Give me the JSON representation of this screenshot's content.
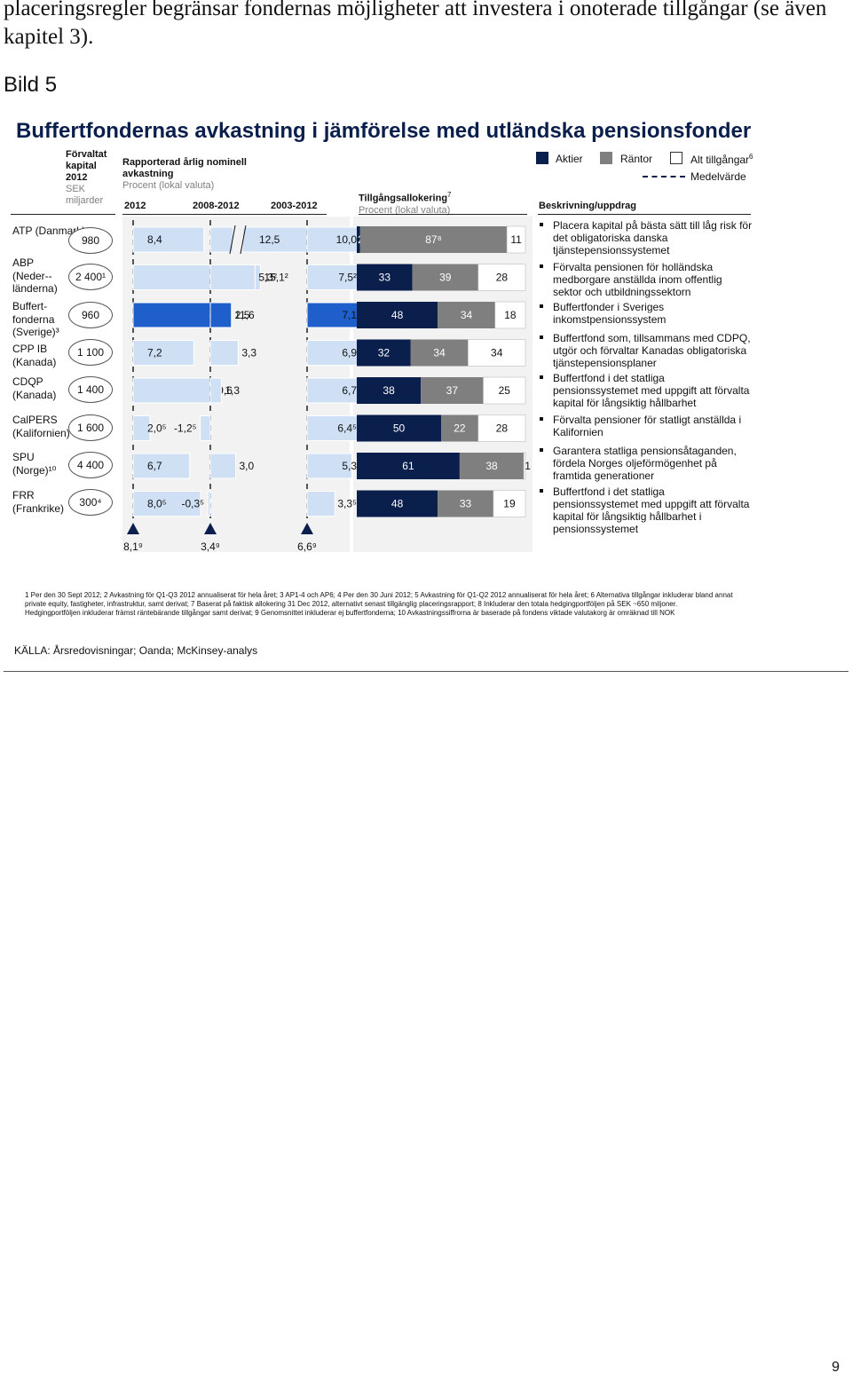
{
  "intro_text": "placeringsregler begränsar fondernas möjligheter att investera i onoterade tillgångar (se även kapitel 3).",
  "bild_label": "Bild 5",
  "title": "Buffertfondernas avkastning i jämförelse med utländska pensionsfonder",
  "col_headers": {
    "capital_title": "Förvaltat kapital 2012",
    "capital_unit": "SEK miljarder",
    "return_title": "Rapporterad årlig nominell avkastning",
    "return_unit": "Procent (lokal valuta)",
    "period_2012": "2012",
    "period_2008": "2008-2012",
    "period_2003": "2003-2012",
    "alloc_title": "Tillgångsallokering",
    "alloc_title_sup": "7",
    "alloc_unit": "Procent (lokal valuta)",
    "desc_title": "Beskrivning/uppdrag"
  },
  "legend": {
    "equities": "Aktier",
    "rates": "Räntor",
    "alternatives": "Alt tillgångar",
    "alternatives_sup": "6",
    "average": "Medelvärde"
  },
  "funds": [
    {
      "name": "ATP (Danmark)",
      "capital": "980",
      "description": "Placera kapital på bästa sätt till låg risk för det obligatoriska danska tjänstepensionssystemet"
    },
    {
      "name": "ABP (Neder-- länderna)",
      "capital": "2 400¹",
      "description": "Förvalta pensionen för holländska medborgare anställda inom offentlig sektor och utbildningssektorn"
    },
    {
      "name": "Buffert- fonderna (Sverige)³",
      "capital": "960",
      "description": "Buffertfonder i Sveriges inkomstpensionssystem"
    },
    {
      "name": "CPP IB (Kanada)",
      "capital": "1 100",
      "description": "Buffertfond som, tillsammans med CDPQ, utgör och förvaltar Kanadas obligatoriska tjänstepensionsplaner"
    },
    {
      "name": "CDQP (Kanada)",
      "capital": "1 400",
      "description": "Buffertfond i det statliga pensionssystemet med uppgift att förvalta kapital för långsiktig hållbarhet"
    },
    {
      "name": "CalPERS (Kalifornien)",
      "capital": "1 600",
      "description": "Förvalta pensioner för statligt anställda i Kalifornien"
    },
    {
      "name": "SPU (Norge)¹⁰",
      "capital": "4 400",
      "description": "Garantera statliga pensionsåtaganden, fördela Norges oljeförmögenhet på framtida generationer"
    },
    {
      "name": "FRR (Frankrike)",
      "capital": "300⁴",
      "description": "Buffertfond i det statliga pensionssystemet med uppgift att förvalta kapital för långsiktig hållbarhet i pensionssystemet"
    }
  ],
  "chart_data": [
    {
      "type": "bar",
      "title": "Rapporterad årlig nominell avkastning",
      "ylabel": "Procent (lokal valuta)",
      "categories": [
        "ATP (Danmark)",
        "ABP (Nederländerna)",
        "Buffertfonderna (Sverige)",
        "CPP IB (Kanada)",
        "CDQP (Kanada)",
        "CalPERS (Kalifornien)",
        "SPU (Norge)",
        "FRR (Frankrike)"
      ],
      "series": [
        {
          "name": "2012",
          "values": [
            8.4,
            15.1,
            11.6,
            7.2,
            9.6,
            2.0,
            6.7,
            8.0
          ],
          "labels": [
            "8,4",
            "15,1²",
            "11,6",
            "7,2",
            "9,6",
            "2,0⁵",
            "6,7",
            "8,0⁵"
          ],
          "average": 8.1,
          "average_label": "8,1⁹"
        },
        {
          "name": "2008-2012",
          "values": [
            12.5,
            5.3,
            2.5,
            3.3,
            1.3,
            -1.2,
            3.0,
            -0.3
          ],
          "labels": [
            "12,5",
            "5,3²",
            "2,5",
            "3,3",
            "1,3",
            "-1,2⁵",
            "3,0",
            "-0,3⁵"
          ],
          "average": 3.4,
          "average_label": "3,4⁹"
        },
        {
          "name": "2003-2012",
          "values": [
            10.0,
            7.5,
            7.1,
            6.9,
            6.7,
            6.4,
            5.3,
            3.3
          ],
          "labels": [
            "10,0",
            "7,5²",
            "7,1",
            "6,9",
            "6,7",
            "6,4⁵",
            "5,3",
            "3,3⁵"
          ],
          "average": 6.6,
          "average_label": "6,6⁹"
        }
      ],
      "highlight_category": "Buffertfonderna (Sverige)"
    },
    {
      "type": "bar",
      "stacked": true,
      "title": "Tillgångsallokering",
      "ylabel": "Procent (lokal valuta)",
      "categories": [
        "ATP (Danmark)",
        "ABP (Nederländerna)",
        "Buffertfonderna (Sverige)",
        "CPP IB (Kanada)",
        "CDQP (Kanada)",
        "CalPERS (Kalifornien)",
        "SPU (Norge)",
        "FRR (Frankrike)"
      ],
      "series": [
        {
          "name": "Aktier",
          "values": [
            2,
            33,
            48,
            32,
            38,
            50,
            61,
            48
          ]
        },
        {
          "name": "Räntor",
          "values": [
            87,
            39,
            34,
            34,
            37,
            22,
            38,
            33
          ],
          "labels": [
            "87⁸",
            "39",
            "34",
            "34",
            "37",
            "22",
            "38",
            "33"
          ]
        },
        {
          "name": "Alt tillgångar",
          "values": [
            11,
            28,
            18,
            34,
            25,
            28,
            1,
            19
          ]
        }
      ]
    }
  ],
  "colors": {
    "equities": "#0b1f4d",
    "rates": "#7f7f7f",
    "alternatives": "#ffffff",
    "return_bar": "#cfe0f5",
    "return_highlight": "#1f5fcc",
    "panel": "#f2f2f2",
    "title": "#0b1f4d"
  },
  "footnotes": "1 Per den 30 Sept 2012; 2 Avkastning för Q1-Q3 2012 annualiserat för hela året; 3 AP1-4 och AP6; 4 Per den 30 Juni 2012; 5 Avkastning för Q1-Q2 2012 annualiserat för hela året; 6 Alternativa tillgångar inkluderar bland annat private equity, fastigheter, infrastruktur, samt derivat; 7 Baserat på faktisk allokering 31 Dec 2012, alternativt senast tillgänglig placeringsrapport; 8 Inkluderar den totala hedgingportföljen på SEK ~650 miljoner. Hedgingportföljen inkluderar främst räntebärande tillgångar samt derivat; 9 Genomsnittet inkluderar ej buffertfonderna; 10 Avkastningssiffrorna är baserade på fondens viktade valutakorg är omräknad till NOK",
  "source": "KÄLLA: Årsredovisningar; Oanda; McKinsey-analys",
  "page_number": "9"
}
